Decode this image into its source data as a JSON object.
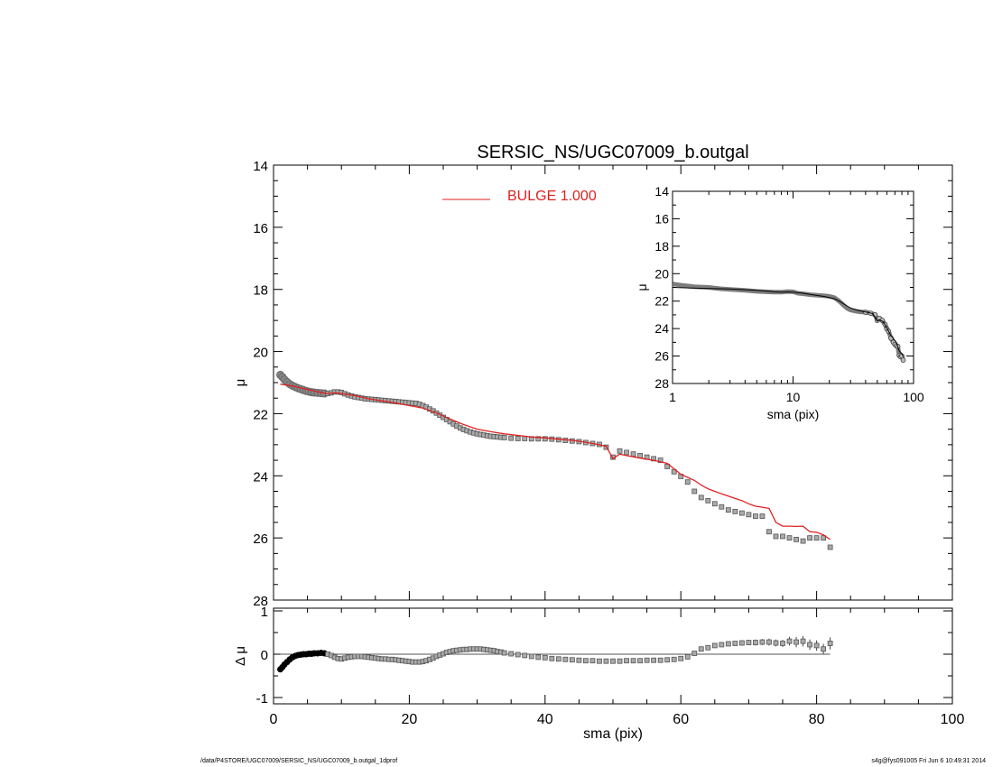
{
  "chart_data": [
    {
      "id": "main",
      "type": "scatter",
      "title": "SERSIC_NS/UGC07009_b.outgal",
      "xlabel": "",
      "ylabel": "μ",
      "xlim": [
        0,
        100
      ],
      "ylim": [
        28,
        14
      ],
      "y_inverted": true,
      "xticks": [
        0,
        20,
        40,
        60,
        80,
        100
      ],
      "yticks": [
        14,
        16,
        18,
        20,
        22,
        24,
        26,
        28
      ],
      "legend": {
        "label": "BULGE  1.000",
        "color": "#e02020",
        "placement": "top-center"
      },
      "colors": {
        "model": "#e02020",
        "data": "#777777"
      },
      "series": [
        {
          "role": "observed",
          "marker": "square",
          "x": [
            1.0,
            1.3,
            1.6,
            2.0,
            2.4,
            2.8,
            3.2,
            3.6,
            4.0,
            4.4,
            4.8,
            5.2,
            5.6,
            6.0,
            6.5,
            7.0,
            7.5,
            8.0,
            8.5,
            9.0,
            9.5,
            10.0,
            10.5,
            11.0,
            11.5,
            12.0,
            12.5,
            13.0,
            13.5,
            14.0,
            14.5,
            15.0,
            15.5,
            16.0,
            16.5,
            17.0,
            17.5,
            18.0,
            18.5,
            19.0,
            19.5,
            20.0,
            20.5,
            21.0,
            21.5,
            22.0,
            22.5,
            23.0,
            23.5,
            24.0,
            24.5,
            25.0,
            25.5,
            26.0,
            26.5,
            27.0,
            27.5,
            28.0,
            28.5,
            29.0,
            29.5,
            30.0,
            30.5,
            31.0,
            31.5,
            32.0,
            32.5,
            33.0,
            33.5,
            34.0,
            35.0,
            36.0,
            37.0,
            38.0,
            39.0,
            40.0,
            41.0,
            42.0,
            43.0,
            44.0,
            45.0,
            46.0,
            47.0,
            48.0,
            49.0,
            50.0,
            51.0,
            52.0,
            53.0,
            54.0,
            55.0,
            56.0,
            57.0,
            58.0,
            59.0,
            60.0,
            61.0,
            62.0,
            63.0,
            64.0,
            65.0,
            66.0,
            67.0,
            68.0,
            69.0,
            70.0,
            71.0,
            72.0,
            73.0,
            74.0,
            75.0,
            76.0,
            77.0,
            78.0,
            79.0,
            80.0,
            81.0,
            82.0
          ],
          "y": [
            20.75,
            20.82,
            20.9,
            20.98,
            21.05,
            21.1,
            21.14,
            21.18,
            21.21,
            21.24,
            21.27,
            21.29,
            21.31,
            21.32,
            21.33,
            21.34,
            21.35,
            21.35,
            21.33,
            21.3,
            21.3,
            21.32,
            21.36,
            21.4,
            21.43,
            21.46,
            21.48,
            21.5,
            21.52,
            21.53,
            21.54,
            21.55,
            21.56,
            21.57,
            21.58,
            21.59,
            21.6,
            21.61,
            21.62,
            21.63,
            21.64,
            21.65,
            21.66,
            21.67,
            21.7,
            21.74,
            21.79,
            21.85,
            21.91,
            21.98,
            22.05,
            22.12,
            22.19,
            22.26,
            22.33,
            22.4,
            22.46,
            22.51,
            22.55,
            22.59,
            22.62,
            22.65,
            22.67,
            22.69,
            22.71,
            22.73,
            22.74,
            22.75,
            22.76,
            22.77,
            22.79,
            22.8,
            22.8,
            22.81,
            22.81,
            22.81,
            22.82,
            22.84,
            22.86,
            22.88,
            22.9,
            22.93,
            22.96,
            22.99,
            23.08,
            23.4,
            23.2,
            23.25,
            23.3,
            23.35,
            23.4,
            23.45,
            23.5,
            23.7,
            23.87,
            24.02,
            24.2,
            24.5,
            24.7,
            24.8,
            24.9,
            25.0,
            25.1,
            25.15,
            25.2,
            25.25,
            25.3,
            25.3,
            25.8,
            25.95,
            25.95,
            26.0,
            26.05,
            26.1,
            26.0,
            26.0,
            26.0,
            26.3
          ]
        },
        {
          "role": "model",
          "name": "BULGE  1.000",
          "x": [
            1,
            2,
            3,
            4,
            5,
            6,
            7,
            8,
            9,
            10,
            12,
            14,
            16,
            18,
            20,
            22,
            24,
            26,
            28,
            30,
            32,
            34,
            36,
            38,
            40,
            42,
            44,
            46,
            48,
            49,
            50,
            51,
            52,
            54,
            56,
            58,
            60,
            61,
            62,
            63,
            64,
            65,
            66,
            67,
            68,
            69,
            70,
            71,
            72,
            73,
            74,
            75,
            76,
            77,
            78,
            79,
            80,
            81,
            82
          ],
          "y": [
            21.05,
            21.08,
            21.12,
            21.17,
            21.22,
            21.27,
            21.32,
            21.35,
            21.33,
            21.35,
            21.42,
            21.52,
            21.59,
            21.66,
            21.74,
            21.82,
            21.98,
            22.17,
            22.35,
            22.5,
            22.58,
            22.65,
            22.7,
            22.75,
            22.78,
            22.82,
            22.86,
            22.92,
            23.0,
            23.05,
            23.45,
            23.3,
            23.35,
            23.43,
            23.5,
            23.6,
            23.95,
            24.05,
            24.15,
            24.3,
            24.42,
            24.5,
            24.58,
            24.65,
            24.73,
            24.8,
            24.9,
            24.98,
            25.01,
            25.05,
            25.5,
            25.62,
            25.62,
            25.63,
            25.62,
            25.8,
            25.82,
            25.9,
            26.05
          ]
        }
      ]
    },
    {
      "id": "inset",
      "type": "scatter",
      "xscale": "log",
      "xlabel": "sma (pix)",
      "ylabel": "μ",
      "xlim": [
        1,
        100
      ],
      "ylim": [
        28,
        14
      ],
      "y_inverted": true,
      "xticks": [
        1,
        10,
        100
      ],
      "yticks": [
        14,
        16,
        18,
        20,
        22,
        24,
        26,
        28
      ],
      "series": [
        {
          "role": "observed",
          "x": [
            1.0,
            1.2,
            1.5,
            2.0,
            2.5,
            3,
            4,
            5,
            6,
            7,
            8,
            9,
            10,
            11,
            12,
            14,
            16,
            18,
            20,
            22,
            24,
            26,
            28,
            30,
            33,
            36,
            40,
            44,
            48,
            50,
            52,
            55,
            58,
            60,
            62,
            65,
            68,
            70,
            72,
            74,
            76,
            78,
            80,
            82
          ],
          "y": [
            20.75,
            20.85,
            20.95,
            21.0,
            21.1,
            21.15,
            21.22,
            21.29,
            21.32,
            21.34,
            21.35,
            21.3,
            21.32,
            21.43,
            21.46,
            21.53,
            21.57,
            21.61,
            21.65,
            21.74,
            21.98,
            22.26,
            22.51,
            22.65,
            22.73,
            22.78,
            22.81,
            22.88,
            22.99,
            23.4,
            23.25,
            23.4,
            23.7,
            24.02,
            24.2,
            24.7,
            25.0,
            25.15,
            25.25,
            25.3,
            25.95,
            26.05,
            26.0,
            26.3
          ]
        },
        {
          "role": "model",
          "x": [
            1.0,
            1.5,
            2,
            3,
            4,
            5,
            6,
            7,
            8,
            9,
            10,
            12,
            14,
            16,
            18,
            20,
            22,
            24,
            26,
            28,
            30,
            34,
            38,
            42,
            46,
            50,
            52,
            56,
            60,
            64,
            68,
            72,
            76,
            80,
            82
          ],
          "y": [
            21.0,
            21.05,
            21.08,
            21.12,
            21.17,
            21.22,
            21.27,
            21.32,
            21.35,
            21.33,
            21.35,
            21.42,
            21.52,
            21.59,
            21.66,
            21.74,
            21.82,
            21.98,
            22.17,
            22.35,
            22.5,
            22.65,
            22.75,
            22.82,
            22.92,
            23.45,
            23.35,
            23.5,
            23.95,
            24.42,
            24.73,
            25.01,
            25.62,
            25.82,
            26.05
          ]
        }
      ]
    },
    {
      "id": "residual",
      "type": "scatter",
      "xlabel": "sma (pix)",
      "ylabel": "Δ μ",
      "xlim": [
        0,
        100
      ],
      "ylim": [
        -1,
        1
      ],
      "xticks": [
        0,
        20,
        40,
        60,
        80,
        100
      ],
      "yticks": [
        -1,
        0,
        1
      ],
      "zero_line": true,
      "series": [
        {
          "role": "residual",
          "x": [
            1.0,
            1.3,
            1.6,
            2.0,
            2.4,
            2.8,
            3.2,
            3.6,
            4.0,
            4.4,
            4.8,
            5.2,
            5.6,
            6.0,
            6.5,
            7.0,
            7.5,
            8.0,
            8.5,
            9.0,
            9.5,
            10.0,
            10.5,
            11.0,
            11.5,
            12.0,
            12.5,
            13.0,
            13.5,
            14.0,
            14.5,
            15.0,
            15.5,
            16.0,
            16.5,
            17.0,
            17.5,
            18.0,
            18.5,
            19.0,
            19.5,
            20.0,
            20.5,
            21.0,
            21.5,
            22.0,
            22.5,
            23.0,
            23.5,
            24.0,
            24.5,
            25.0,
            25.5,
            26.0,
            26.5,
            27.0,
            27.5,
            28.0,
            28.5,
            29.0,
            29.5,
            30.0,
            30.5,
            31.0,
            31.5,
            32.0,
            32.5,
            33.0,
            33.5,
            34.0,
            35.0,
            36.0,
            37.0,
            38.0,
            39.0,
            40.0,
            41.0,
            42.0,
            43.0,
            44.0,
            45.0,
            46.0,
            47.0,
            48.0,
            49.0,
            50.0,
            51.0,
            52.0,
            53.0,
            54.0,
            55.0,
            56.0,
            57.0,
            58.0,
            59.0,
            60.0,
            61.0,
            62.0
          ],
          "y": [
            -0.35,
            -0.3,
            -0.24,
            -0.18,
            -0.12,
            -0.07,
            -0.04,
            -0.02,
            -0.01,
            0.0,
            0.0,
            0.01,
            0.01,
            0.02,
            0.02,
            0.03,
            0.02,
            0.0,
            -0.03,
            -0.07,
            -0.1,
            -0.11,
            -0.09,
            -0.07,
            -0.06,
            -0.05,
            -0.05,
            -0.05,
            -0.06,
            -0.07,
            -0.08,
            -0.09,
            -0.1,
            -0.11,
            -0.11,
            -0.12,
            -0.12,
            -0.13,
            -0.14,
            -0.15,
            -0.16,
            -0.17,
            -0.18,
            -0.18,
            -0.18,
            -0.17,
            -0.15,
            -0.12,
            -0.09,
            -0.05,
            -0.02,
            0.01,
            0.04,
            0.06,
            0.08,
            0.09,
            0.1,
            0.11,
            0.11,
            0.12,
            0.12,
            0.12,
            0.12,
            0.11,
            0.1,
            0.09,
            0.08,
            0.06,
            0.05,
            0.03,
            0.01,
            -0.01,
            -0.03,
            -0.05,
            -0.07,
            -0.08,
            -0.1,
            -0.11,
            -0.12,
            -0.13,
            -0.14,
            -0.15,
            -0.15,
            -0.16,
            -0.16,
            -0.16,
            -0.16,
            -0.15,
            -0.15,
            -0.15,
            -0.14,
            -0.14,
            -0.14,
            -0.13,
            -0.12,
            -0.1,
            -0.06,
            0.02
          ]
        },
        {
          "role": "residual-errorbars",
          "x": [
            63,
            64,
            65,
            66,
            67,
            68,
            69,
            70,
            71,
            72,
            73,
            74,
            75,
            76,
            77,
            78,
            79,
            80,
            81,
            82
          ],
          "y": [
            0.12,
            0.15,
            0.2,
            0.22,
            0.24,
            0.25,
            0.26,
            0.27,
            0.27,
            0.28,
            0.28,
            0.26,
            0.25,
            0.3,
            0.28,
            0.3,
            0.22,
            0.2,
            0.12,
            0.25
          ],
          "err": [
            0.04,
            0.04,
            0.05,
            0.05,
            0.05,
            0.05,
            0.06,
            0.06,
            0.07,
            0.07,
            0.08,
            0.08,
            0.08,
            0.1,
            0.12,
            0.12,
            0.12,
            0.12,
            0.12,
            0.14
          ]
        }
      ]
    }
  ],
  "footer": {
    "left": "/data/P4STORE/UGC07009/SERSIC_NS/UGC07009_b.outgal_1dprof",
    "right": "s4g@fys091005  Fri Jun  6 10:49:31 2014"
  }
}
